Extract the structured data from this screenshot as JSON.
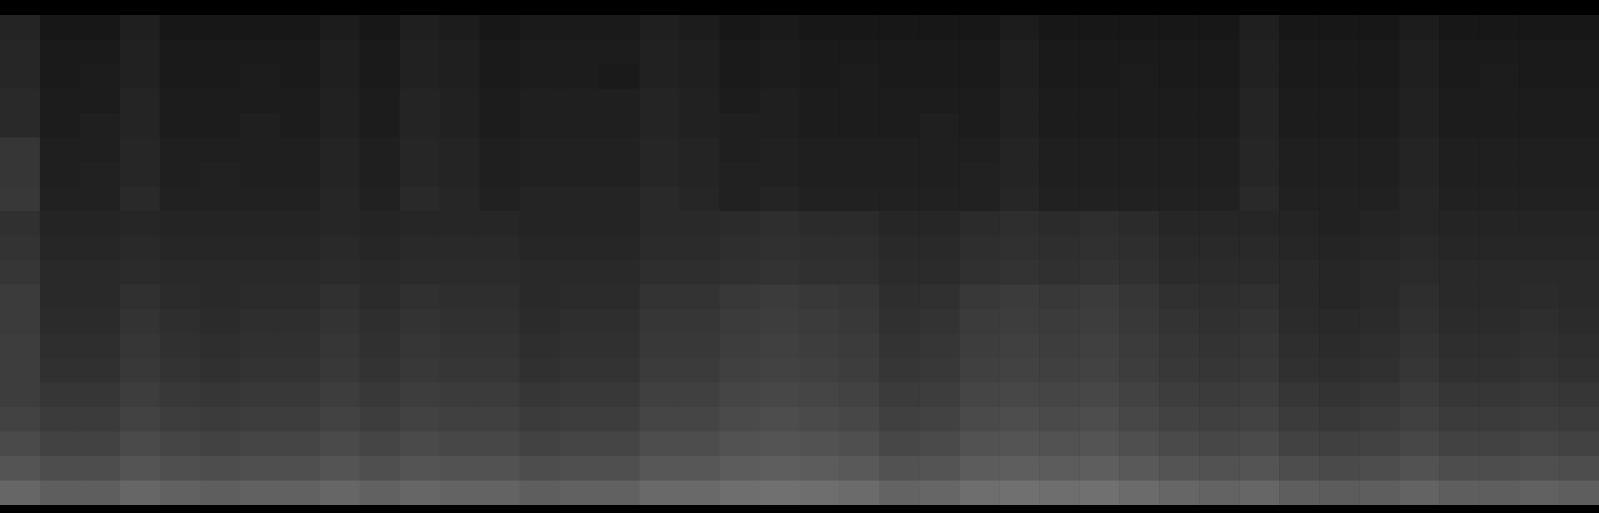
{
  "chart_data": {
    "type": "heatmap",
    "tick_labels": false,
    "zlim": [
      0,
      100
    ],
    "cells": [
      [
        14,
        9,
        9,
        12,
        9,
        9,
        9,
        9,
        11,
        9,
        12,
        11,
        9,
        10,
        10,
        10,
        12,
        11,
        9,
        10,
        9,
        9,
        9,
        9,
        9,
        11,
        9,
        9,
        9,
        9,
        9,
        12,
        9,
        9,
        9,
        11,
        9,
        9,
        9,
        9
      ],
      [
        15,
        10,
        10,
        13,
        10,
        10,
        10,
        10,
        12,
        10,
        13,
        12,
        10,
        11,
        11,
        11,
        13,
        12,
        10,
        11,
        10,
        10,
        10,
        10,
        10,
        12,
        10,
        10,
        10,
        10,
        10,
        13,
        10,
        10,
        10,
        12,
        10,
        10,
        10,
        10
      ],
      [
        15,
        10,
        11,
        13,
        10,
        10,
        11,
        10,
        12,
        10,
        13,
        12,
        10,
        11,
        11,
        10,
        13,
        12,
        10,
        11,
        10,
        11,
        10,
        10,
        10,
        12,
        10,
        10,
        11,
        10,
        10,
        13,
        10,
        10,
        10,
        12,
        10,
        11,
        10,
        10
      ],
      [
        16,
        11,
        11,
        14,
        11,
        11,
        11,
        11,
        13,
        11,
        14,
        13,
        11,
        12,
        12,
        12,
        14,
        13,
        11,
        12,
        11,
        11,
        11,
        11,
        11,
        13,
        11,
        11,
        11,
        11,
        11,
        14,
        11,
        11,
        11,
        13,
        11,
        11,
        11,
        11
      ],
      [
        16,
        11,
        12,
        14,
        11,
        11,
        12,
        11,
        13,
        11,
        14,
        13,
        11,
        12,
        12,
        12,
        14,
        13,
        12,
        12,
        11,
        11,
        11,
        12,
        11,
        13,
        11,
        11,
        11,
        11,
        11,
        14,
        11,
        11,
        11,
        13,
        11,
        11,
        11,
        11
      ],
      [
        21,
        12,
        12,
        15,
        12,
        12,
        12,
        12,
        14,
        12,
        15,
        14,
        12,
        13,
        13,
        13,
        15,
        14,
        12,
        13,
        12,
        12,
        12,
        12,
        12,
        14,
        12,
        12,
        12,
        12,
        12,
        15,
        12,
        12,
        12,
        14,
        12,
        12,
        12,
        12
      ],
      [
        21,
        12,
        13,
        15,
        12,
        13,
        12,
        12,
        14,
        12,
        15,
        14,
        12,
        13,
        13,
        13,
        15,
        14,
        13,
        13,
        12,
        12,
        12,
        12,
        13,
        14,
        12,
        12,
        12,
        12,
        12,
        15,
        12,
        12,
        12,
        14,
        12,
        12,
        12,
        12
      ],
      [
        22,
        13,
        13,
        16,
        13,
        13,
        13,
        13,
        15,
        13,
        16,
        15,
        13,
        14,
        14,
        14,
        16,
        15,
        13,
        14,
        13,
        13,
        13,
        13,
        13,
        15,
        13,
        13,
        13,
        13,
        13,
        16,
        13,
        13,
        13,
        15,
        13,
        13,
        13,
        13
      ],
      [
        19,
        14,
        14,
        15,
        14,
        14,
        14,
        14,
        15,
        14,
        15,
        15,
        15,
        14,
        14,
        14,
        16,
        16,
        17,
        18,
        17,
        17,
        15,
        15,
        17,
        18,
        17,
        18,
        17,
        15,
        15,
        15,
        14,
        13,
        14,
        15,
        14,
        14,
        14,
        14
      ],
      [
        20,
        15,
        15,
        16,
        15,
        15,
        15,
        15,
        16,
        15,
        16,
        16,
        16,
        15,
        15,
        15,
        17,
        17,
        18,
        19,
        18,
        18,
        16,
        16,
        18,
        19,
        18,
        19,
        18,
        16,
        16,
        16,
        15,
        14,
        15,
        16,
        15,
        15,
        15,
        15
      ],
      [
        21,
        16,
        16,
        17,
        16,
        16,
        16,
        16,
        17,
        16,
        17,
        17,
        17,
        16,
        16,
        16,
        18,
        18,
        19,
        20,
        19,
        19,
        17,
        17,
        19,
        20,
        19,
        20,
        19,
        17,
        17,
        17,
        16,
        15,
        16,
        17,
        16,
        16,
        16,
        16
      ],
      [
        23,
        16,
        16,
        19,
        17,
        16,
        17,
        17,
        19,
        17,
        19,
        18,
        18,
        16,
        17,
        17,
        20,
        20,
        22,
        23,
        22,
        21,
        18,
        19,
        22,
        23,
        22,
        23,
        21,
        19,
        18,
        19,
        16,
        15,
        16,
        18,
        16,
        16,
        17,
        16
      ],
      [
        23,
        17,
        17,
        20,
        18,
        17,
        18,
        18,
        20,
        18,
        20,
        19,
        19,
        17,
        18,
        18,
        21,
        21,
        23,
        24,
        23,
        22,
        19,
        20,
        23,
        24,
        23,
        24,
        22,
        20,
        19,
        20,
        17,
        16,
        17,
        19,
        17,
        17,
        18,
        17
      ],
      [
        24,
        18,
        18,
        21,
        19,
        18,
        19,
        19,
        21,
        19,
        21,
        20,
        20,
        18,
        19,
        19,
        22,
        22,
        24,
        25,
        24,
        23,
        20,
        21,
        24,
        25,
        24,
        25,
        23,
        21,
        20,
        21,
        18,
        17,
        18,
        20,
        18,
        18,
        19,
        18
      ],
      [
        24,
        19,
        19,
        22,
        20,
        19,
        20,
        20,
        22,
        20,
        22,
        21,
        21,
        19,
        20,
        20,
        23,
        23,
        25,
        26,
        25,
        24,
        21,
        22,
        25,
        26,
        25,
        26,
        24,
        22,
        21,
        22,
        19,
        18,
        19,
        21,
        19,
        19,
        20,
        19
      ],
      [
        24,
        21,
        21,
        24,
        22,
        21,
        22,
        22,
        24,
        22,
        24,
        23,
        23,
        21,
        22,
        22,
        25,
        25,
        27,
        28,
        27,
        26,
        23,
        24,
        27,
        28,
        27,
        28,
        26,
        24,
        23,
        24,
        21,
        20,
        21,
        23,
        21,
        21,
        22,
        21
      ],
      [
        26,
        23,
        23,
        26,
        24,
        23,
        24,
        24,
        26,
        24,
        26,
        25,
        25,
        23,
        24,
        24,
        27,
        27,
        29,
        30,
        29,
        28,
        25,
        26,
        29,
        30,
        29,
        30,
        28,
        26,
        25,
        26,
        23,
        22,
        23,
        25,
        23,
        23,
        24,
        23
      ],
      [
        29,
        26,
        26,
        29,
        27,
        26,
        27,
        27,
        29,
        27,
        29,
        28,
        28,
        26,
        27,
        27,
        30,
        30,
        32,
        33,
        32,
        31,
        28,
        29,
        32,
        33,
        32,
        33,
        31,
        29,
        28,
        29,
        26,
        25,
        26,
        28,
        26,
        26,
        27,
        26
      ],
      [
        33,
        30,
        30,
        33,
        31,
        30,
        31,
        31,
        33,
        31,
        33,
        32,
        32,
        30,
        31,
        31,
        34,
        34,
        36,
        37,
        36,
        35,
        32,
        33,
        36,
        37,
        36,
        37,
        35,
        33,
        32,
        33,
        30,
        29,
        30,
        32,
        30,
        30,
        31,
        30
      ],
      [
        40,
        37,
        37,
        40,
        38,
        37,
        38,
        38,
        40,
        38,
        40,
        39,
        39,
        37,
        38,
        38,
        41,
        41,
        43,
        44,
        43,
        42,
        39,
        40,
        43,
        44,
        43,
        44,
        42,
        40,
        39,
        40,
        37,
        36,
        37,
        39,
        37,
        37,
        38,
        37
      ]
    ]
  }
}
